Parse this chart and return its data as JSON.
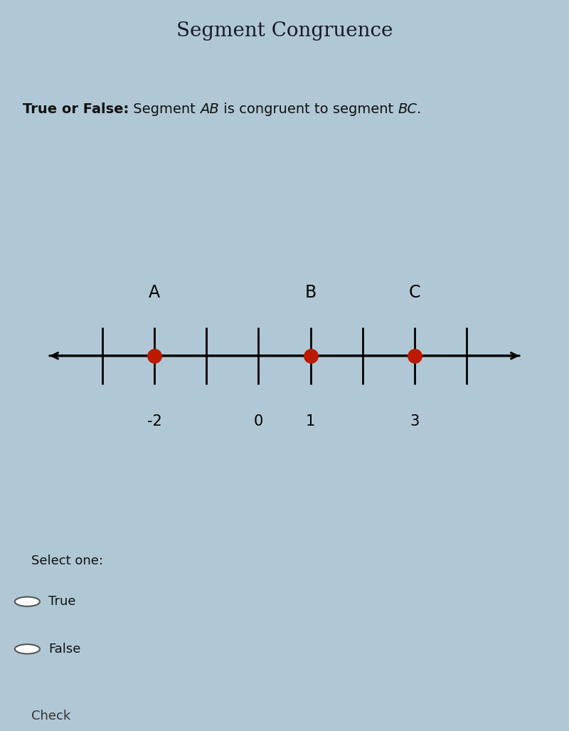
{
  "title": "Segment Congruence",
  "title_bg": "#b8cdd8",
  "title_fontsize": 20,
  "question_text_bold": "True or False:",
  "question_fontsize": 14,
  "question_bg": "#b0c8d5",
  "body_bg": "#b0c8d5",
  "numberline_bg": "#f0eeea",
  "numberline_border": "#2a2a2a",
  "point_color": "#bb1a00",
  "points": [
    -2,
    1,
    3
  ],
  "point_labels": [
    "A",
    "B",
    "C"
  ],
  "tick_positions": [
    -3,
    -2,
    -1,
    0,
    1,
    2,
    3,
    4
  ],
  "tick_labels": {
    "-2": "-2",
    "0": "0",
    "1": "1",
    "3": "3"
  },
  "x_min": -4.2,
  "x_max": 5.2,
  "select_one_text": "Select one:",
  "options": [
    "True",
    "False"
  ],
  "check_text": "Check",
  "bottom_bg": "#999999",
  "separator_color": "#7a9aaa"
}
